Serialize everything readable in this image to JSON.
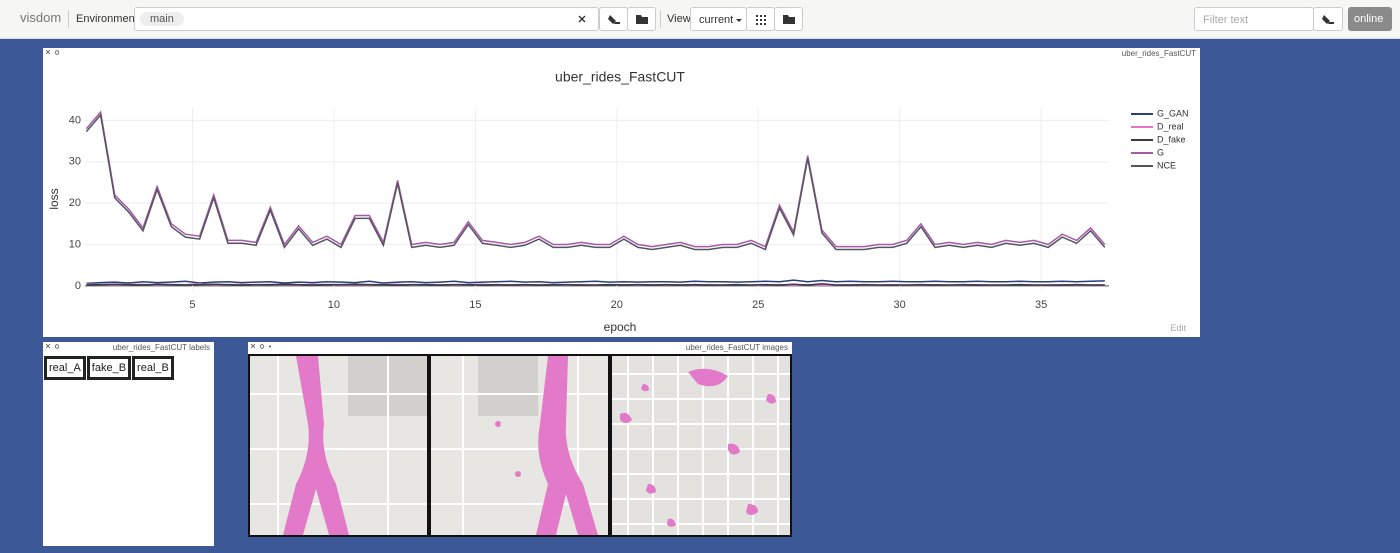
{
  "toolbar": {
    "brand": "visdom",
    "env_label": "Environment",
    "env": "main",
    "view_label": "View",
    "view": "current",
    "filter_placeholder": "Filter text",
    "status": "online"
  },
  "chart_pane": {
    "title": "uber_rides_FastCUT",
    "edit": "Edit"
  },
  "chart_data": {
    "type": "line",
    "title": "uber_rides_FastCUT",
    "x_label": "epoch",
    "y_label": "loss",
    "x": [
      1.25,
      1.75,
      2.25,
      2.75,
      3.25,
      3.75,
      4.25,
      4.75,
      5.25,
      5.75,
      6.25,
      6.75,
      7.25,
      7.75,
      8.25,
      8.75,
      9.25,
      9.75,
      10.25,
      10.75,
      11.25,
      11.75,
      12.25,
      12.75,
      13.25,
      13.75,
      14.25,
      14.75,
      15.25,
      15.75,
      16.25,
      16.75,
      17.25,
      17.75,
      18.25,
      18.75,
      19.25,
      19.75,
      20.25,
      20.75,
      21.25,
      21.75,
      22.25,
      22.75,
      23.25,
      23.75,
      24.25,
      24.75,
      25.25,
      25.75,
      26.25,
      26.75,
      27.25,
      27.75,
      28.25,
      28.75,
      29.25,
      29.75,
      30.25,
      30.75,
      31.25,
      31.75,
      32.25,
      32.75,
      33.25,
      33.75,
      34.25,
      34.75,
      35.25,
      35.75,
      36.25,
      36.75,
      37.25
    ],
    "series": [
      {
        "name": "G_GAN",
        "color": "#2b3f7a",
        "values": [
          0.6,
          0.8,
          0.9,
          0.7,
          1.0,
          0.8,
          0.9,
          1.1,
          0.7,
          0.9,
          1.0,
          0.8,
          0.9,
          1.0,
          0.7,
          0.9,
          0.8,
          1.0,
          0.9,
          0.8,
          1.1,
          0.7,
          0.9,
          1.0,
          0.8,
          0.9,
          1.1,
          0.8,
          0.9,
          1.0,
          1.1,
          0.9,
          1.0,
          0.8,
          0.9,
          1.0,
          1.1,
          0.9,
          1.0,
          0.9,
          1.0,
          1.0,
          0.9,
          1.1,
          1.0,
          1.0,
          0.9,
          1.0,
          1.1,
          1.0,
          1.4,
          1.0,
          1.3,
          1.0,
          1.1,
          1.0,
          1.0,
          1.1,
          1.0,
          1.0,
          1.1,
          1.0,
          1.0,
          1.1,
          1.0,
          1.0,
          1.1,
          1.0,
          1.0,
          1.1,
          1.0,
          1.1,
          1.2
        ]
      },
      {
        "name": "D_real",
        "color": "#e377c2",
        "values": [
          0.4,
          0.3,
          0.2,
          0.3,
          0.4,
          0.2,
          0.3,
          0.3,
          0.5,
          0.2,
          0.3,
          0.4,
          0.2,
          0.3,
          0.3,
          0.2,
          0.4,
          0.3,
          0.2,
          0.3,
          0.2,
          0.3,
          0.4,
          0.2,
          0.3,
          0.3,
          0.2,
          0.3,
          0.4,
          0.2,
          0.3,
          0.2,
          0.3,
          0.3,
          0.2,
          0.3,
          0.2,
          0.3,
          0.3,
          0.2,
          0.3,
          0.2,
          0.3,
          0.2,
          0.3,
          0.2,
          0.3,
          0.2,
          0.2,
          0.3,
          0.1,
          0.3,
          0.1,
          0.2,
          0.3,
          0.2,
          0.2,
          0.3,
          0.2,
          0.2,
          0.3,
          0.2,
          0.2,
          0.3,
          0.2,
          0.2,
          0.3,
          0.2,
          0.2,
          0.3,
          0.2,
          0.2,
          0.2
        ]
      },
      {
        "name": "D_fake",
        "color": "#3a3a4a",
        "values": [
          0.2,
          0.3,
          0.4,
          0.3,
          0.2,
          0.4,
          0.3,
          0.2,
          0.3,
          0.4,
          0.3,
          0.2,
          0.3,
          0.3,
          0.4,
          0.3,
          0.2,
          0.3,
          0.3,
          0.4,
          0.3,
          0.3,
          0.2,
          0.3,
          0.3,
          0.2,
          0.3,
          0.3,
          0.2,
          0.3,
          0.2,
          0.3,
          0.2,
          0.3,
          0.3,
          0.2,
          0.2,
          0.3,
          0.2,
          0.3,
          0.2,
          0.3,
          0.2,
          0.3,
          0.2,
          0.2,
          0.3,
          0.2,
          0.3,
          0.2,
          0.4,
          0.2,
          0.5,
          0.2,
          0.2,
          0.3,
          0.2,
          0.2,
          0.2,
          0.3,
          0.2,
          0.2,
          0.3,
          0.2,
          0.2,
          0.2,
          0.3,
          0.2,
          0.2,
          0.2,
          0.3,
          0.2,
          0.2
        ]
      },
      {
        "name": "G",
        "color": "#a55aa8",
        "values": [
          38,
          42,
          22,
          18.5,
          14,
          24,
          15,
          12.5,
          12,
          22,
          11,
          11,
          10.5,
          19,
          10,
          14.5,
          10.5,
          12,
          10,
          17,
          17,
          10.5,
          25.5,
          10,
          10.5,
          10,
          10.5,
          15.5,
          11,
          10.5,
          10,
          10.5,
          12,
          10,
          10,
          10.5,
          10,
          10,
          12,
          10,
          9.5,
          10,
          10.5,
          9.5,
          9.5,
          10,
          10,
          11,
          9.5,
          19.5,
          13,
          31.5,
          13.5,
          9.5,
          9.5,
          9.5,
          10,
          10,
          11,
          15,
          10,
          10.5,
          10,
          10.5,
          10,
          11,
          10.5,
          11,
          10,
          12.5,
          11,
          14,
          10
        ]
      },
      {
        "name": "NCE",
        "color": "#555560",
        "values": [
          37.3,
          41.3,
          21.3,
          17.8,
          13.3,
          23.3,
          14.3,
          11.8,
          11.3,
          21.3,
          10.3,
          10.3,
          9.8,
          18.3,
          9.3,
          13.8,
          9.8,
          11.3,
          9.3,
          16.3,
          16.3,
          9.8,
          24.8,
          9.3,
          9.8,
          9.3,
          9.8,
          14.8,
          10.3,
          9.8,
          9.3,
          9.8,
          11.3,
          9.3,
          9.3,
          9.8,
          9.3,
          9.3,
          11.3,
          9.3,
          8.8,
          9.3,
          9.8,
          8.8,
          8.8,
          9.3,
          9.3,
          10.3,
          8.8,
          18.8,
          12.3,
          30.8,
          12.8,
          8.8,
          8.8,
          8.8,
          9.3,
          9.3,
          10.3,
          14.3,
          9.3,
          9.8,
          9.3,
          9.8,
          9.3,
          10.3,
          9.8,
          10.3,
          9.3,
          11.8,
          10.3,
          13.3,
          9.3
        ]
      }
    ],
    "xlim": [
      1.2,
      37.4
    ],
    "xticks": [
      5,
      10,
      15,
      20,
      25,
      30,
      35
    ],
    "ylim": [
      -1,
      43
    ],
    "yticks": [
      0,
      10,
      20,
      30,
      40
    ],
    "grid": true,
    "legend": "right"
  },
  "labels_pane": {
    "title": "uber_rides_FastCUT labels",
    "labels": [
      "real_A",
      "fake_B",
      "real_B"
    ]
  },
  "images_pane": {
    "title": "uber_rides_FastCUT images"
  }
}
